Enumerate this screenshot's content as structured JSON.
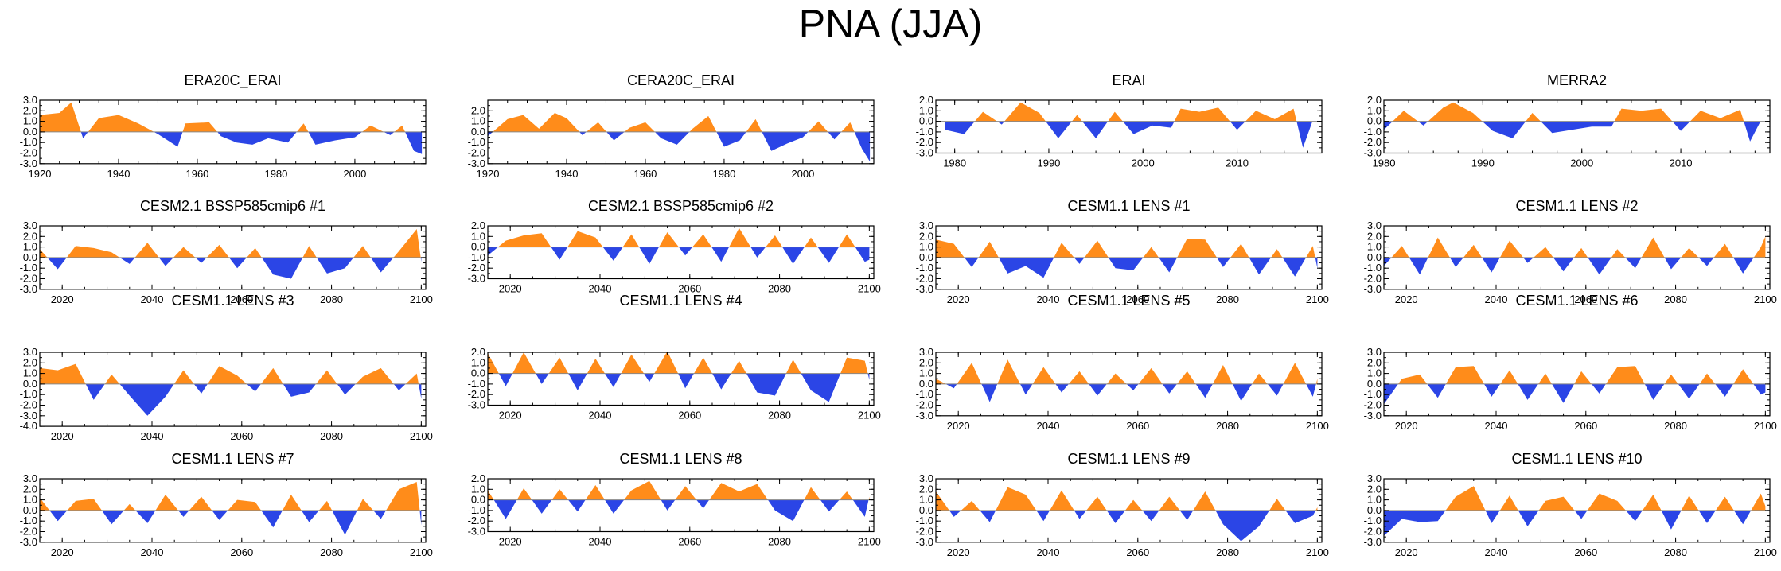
{
  "figure": {
    "title": "PNA (JJA)",
    "colors": {
      "positive": "#ff8c1a",
      "negative": "#2b45e6",
      "axis": "#000000",
      "zero": "#888888"
    }
  },
  "chart_data": [
    {
      "type": "area",
      "title": "ERA20C_ERAI",
      "xlim": [
        1920,
        2018
      ],
      "ylim": [
        -3,
        3
      ],
      "yticks": [
        "3.0",
        "2.0",
        "1.0",
        "0.0",
        "-1.0",
        "-2.0",
        "-3.0"
      ],
      "xticks": [
        1920,
        1940,
        1960,
        1980,
        2000
      ],
      "x": [
        1920,
        1925,
        1928,
        1931,
        1935,
        1940,
        1945,
        1950,
        1955,
        1957,
        1963,
        1966,
        1970,
        1974,
        1978,
        1983,
        1987,
        1990,
        1995,
        2000,
        2004,
        2009,
        2012,
        2015,
        2017
      ],
      "y": [
        1.6,
        1.8,
        2.8,
        -0.6,
        1.3,
        1.6,
        0.8,
        -0.2,
        -1.4,
        0.8,
        0.9,
        -0.4,
        -1.0,
        -1.2,
        -0.6,
        -1.0,
        0.8,
        -1.2,
        -0.8,
        -0.5,
        0.6,
        -0.3,
        0.6,
        -1.8,
        -2.1
      ]
    },
    {
      "type": "area",
      "title": "CERA20C_ERAI",
      "xlim": [
        1920,
        2018
      ],
      "ylim": [
        -3,
        3
      ],
      "yticks": [
        "2.0",
        "1.0",
        "0.0",
        "-1.0",
        "-2.0",
        "-3.0"
      ],
      "xticks": [
        1920,
        1940,
        1960,
        1980,
        2000
      ],
      "x": [
        1920,
        1925,
        1929,
        1933,
        1937,
        1940,
        1944,
        1948,
        1952,
        1956,
        1960,
        1964,
        1968,
        1972,
        1976,
        1980,
        1984,
        1988,
        1992,
        1996,
        2000,
        2004,
        2008,
        2012,
        2015,
        2017
      ],
      "y": [
        -0.4,
        1.2,
        1.6,
        0.3,
        1.8,
        1.3,
        -0.3,
        0.9,
        -0.8,
        0.4,
        0.9,
        -0.6,
        -1.2,
        0.3,
        1.5,
        -1.4,
        -0.8,
        1.2,
        -1.8,
        -1.1,
        -0.5,
        1.0,
        -0.7,
        0.9,
        -1.6,
        -2.8
      ]
    },
    {
      "type": "area",
      "title": "ERAI",
      "xlim": [
        1978,
        2019
      ],
      "ylim": [
        -3,
        2
      ],
      "yticks": [
        "2.0",
        "1.0",
        "0.0",
        "-1.0",
        "-2.0",
        "-3.0"
      ],
      "xticks": [
        1980,
        1990,
        2000,
        2010
      ],
      "x": [
        1979,
        1981,
        1983,
        1985,
        1987,
        1989,
        1991,
        1993,
        1995,
        1997,
        1999,
        2001,
        2003,
        2004,
        2006,
        2008,
        2010,
        2012,
        2014,
        2016,
        2017,
        2018
      ],
      "y": [
        -0.8,
        -1.2,
        0.9,
        -0.3,
        1.8,
        0.8,
        -1.6,
        0.6,
        -1.6,
        0.9,
        -1.2,
        -0.4,
        -0.6,
        1.2,
        0.9,
        1.3,
        -0.8,
        1.0,
        0.2,
        1.2,
        -2.5,
        0.0
      ]
    },
    {
      "type": "area",
      "title": "MERRA2",
      "xlim": [
        1980,
        2019
      ],
      "ylim": [
        -3,
        2
      ],
      "yticks": [
        "2.0",
        "1.0",
        "0.0",
        "-1.0",
        "-2.0",
        "-3.0"
      ],
      "xticks": [
        1980,
        1990,
        2000,
        2010
      ],
      "x": [
        1980,
        1982,
        1984,
        1986,
        1987,
        1989,
        1991,
        1993,
        1995,
        1997,
        1999,
        2001,
        2003,
        2004,
        2006,
        2008,
        2010,
        2012,
        2014,
        2016,
        2017,
        2018
      ],
      "y": [
        -0.8,
        1.0,
        -0.4,
        1.3,
        1.8,
        0.8,
        -0.9,
        -1.6,
        0.8,
        -1.1,
        -0.8,
        -0.5,
        -0.5,
        1.2,
        1.0,
        1.2,
        -0.9,
        1.0,
        0.3,
        1.1,
        -1.9,
        -0.1
      ]
    },
    {
      "type": "area",
      "title": "CESM2.1 BSSP585cmip6 #1",
      "xlim": [
        2015,
        2101
      ],
      "ylim": [
        -3,
        3
      ],
      "yticks": [
        "3.0",
        "2.0",
        "1.0",
        "0.0",
        "-1.0",
        "-2.0",
        "-3.0"
      ],
      "xticks": [
        2020,
        2040,
        2060,
        2080,
        2100
      ],
      "x": [
        2015,
        2019,
        2023,
        2027,
        2031,
        2035,
        2039,
        2043,
        2047,
        2051,
        2055,
        2059,
        2063,
        2067,
        2071,
        2075,
        2079,
        2083,
        2087,
        2091,
        2095,
        2099,
        2100
      ],
      "y": [
        0.8,
        -1.1,
        1.1,
        0.9,
        0.5,
        -0.6,
        1.4,
        -0.8,
        1.0,
        -0.5,
        1.2,
        -1.0,
        0.9,
        -1.6,
        -2.0,
        1.1,
        -1.5,
        -1.0,
        1.1,
        -1.4,
        0.6,
        2.7,
        -0.4
      ]
    },
    {
      "type": "area",
      "title": "CESM2.1 BSSP585cmip6 #2",
      "xlim": [
        2015,
        2101
      ],
      "ylim": [
        -3,
        2
      ],
      "yticks": [
        "2.0",
        "1.0",
        "0.0",
        "-1.0",
        "-2.0",
        "-3.0"
      ],
      "xticks": [
        2020,
        2040,
        2060,
        2080,
        2100
      ],
      "x": [
        2015,
        2019,
        2023,
        2027,
        2031,
        2035,
        2039,
        2043,
        2047,
        2051,
        2055,
        2059,
        2063,
        2067,
        2071,
        2075,
        2079,
        2083,
        2087,
        2091,
        2095,
        2099,
        2100
      ],
      "y": [
        -0.8,
        0.6,
        1.1,
        1.3,
        -1.2,
        1.5,
        0.9,
        -1.3,
        1.2,
        -1.6,
        1.4,
        -0.8,
        1.2,
        -1.4,
        1.8,
        -1.0,
        1.1,
        -1.6,
        0.9,
        -1.5,
        1.2,
        -1.4,
        -1.2
      ]
    },
    {
      "type": "area",
      "title": "CESM1.1 LENS #1",
      "xlim": [
        2015,
        2101
      ],
      "ylim": [
        -3,
        3
      ],
      "yticks": [
        "3.0",
        "2.0",
        "1.0",
        "0.0",
        "-1.0",
        "-2.0",
        "-3.0"
      ],
      "xticks": [
        2020,
        2040,
        2060,
        2080,
        2100
      ],
      "x": [
        2015,
        2019,
        2023,
        2027,
        2031,
        2035,
        2039,
        2043,
        2047,
        2051,
        2055,
        2059,
        2063,
        2067,
        2071,
        2075,
        2079,
        2083,
        2087,
        2091,
        2095,
        2099,
        2100
      ],
      "y": [
        1.7,
        1.3,
        -0.9,
        1.5,
        -1.5,
        -0.8,
        -1.9,
        1.4,
        -0.6,
        1.6,
        -1.0,
        -1.2,
        1.0,
        -1.4,
        1.8,
        1.7,
        -0.9,
        1.3,
        -1.6,
        0.8,
        -1.8,
        1.1,
        -1.0
      ]
    },
    {
      "type": "area",
      "title": "CESM1.1 LENS #2",
      "xlim": [
        2015,
        2101
      ],
      "ylim": [
        -3,
        3
      ],
      "yticks": [
        "3.0",
        "2.0",
        "1.0",
        "0.0",
        "-1.0",
        "-2.0",
        "-3.0"
      ],
      "xticks": [
        2020,
        2040,
        2060,
        2080,
        2100
      ],
      "x": [
        2015,
        2019,
        2023,
        2027,
        2031,
        2035,
        2039,
        2043,
        2047,
        2051,
        2055,
        2059,
        2063,
        2067,
        2071,
        2075,
        2079,
        2083,
        2087,
        2091,
        2095,
        2099,
        2100
      ],
      "y": [
        -0.8,
        1.1,
        -1.6,
        1.9,
        -0.9,
        1.2,
        -1.4,
        1.6,
        -0.5,
        1.0,
        -1.3,
        0.9,
        -1.6,
        0.8,
        -1.0,
        1.9,
        -1.1,
        0.9,
        -0.8,
        1.3,
        -1.5,
        1.0,
        2.0
      ]
    },
    {
      "type": "area",
      "title": "CESM1.1 LENS #3",
      "xlim": [
        2015,
        2101
      ],
      "ylim": [
        -4,
        3
      ],
      "yticks": [
        "3.0",
        "2.0",
        "1.0",
        "0.0",
        "-1.0",
        "-2.0",
        "-3.0",
        "-4.0"
      ],
      "xticks": [
        2020,
        2040,
        2060,
        2080,
        2100
      ],
      "x": [
        2015,
        2019,
        2023,
        2027,
        2031,
        2035,
        2039,
        2043,
        2047,
        2051,
        2055,
        2059,
        2063,
        2067,
        2071,
        2075,
        2079,
        2083,
        2087,
        2091,
        2095,
        2099,
        2100
      ],
      "y": [
        1.5,
        1.3,
        1.9,
        -1.5,
        0.9,
        -1.1,
        -3.0,
        -1.2,
        1.3,
        -0.9,
        1.7,
        0.8,
        -0.7,
        1.5,
        -1.2,
        -0.8,
        1.3,
        -1.0,
        0.7,
        1.5,
        -0.6,
        1.0,
        -1.4
      ]
    },
    {
      "type": "area",
      "title": "CESM1.1 LENS #4",
      "xlim": [
        2015,
        2101
      ],
      "ylim": [
        -3,
        2
      ],
      "yticks": [
        "2.0",
        "1.0",
        "0.0",
        "-1.0",
        "-2.0",
        "-3.0"
      ],
      "xticks": [
        2020,
        2040,
        2060,
        2080,
        2100
      ],
      "x": [
        2015,
        2019,
        2023,
        2027,
        2031,
        2035,
        2039,
        2043,
        2047,
        2051,
        2055,
        2059,
        2063,
        2067,
        2071,
        2075,
        2079,
        2083,
        2087,
        2091,
        2095,
        2099,
        2100
      ],
      "y": [
        1.9,
        -1.2,
        2.0,
        -1.0,
        1.5,
        -1.6,
        1.4,
        -1.3,
        1.8,
        -0.8,
        2.1,
        -1.4,
        1.5,
        -1.5,
        1.2,
        -1.8,
        -2.1,
        1.3,
        -1.6,
        -2.7,
        1.5,
        1.2,
        -0.6
      ]
    },
    {
      "type": "area",
      "title": "CESM1.1 LENS #5",
      "xlim": [
        2015,
        2101
      ],
      "ylim": [
        -3,
        3
      ],
      "yticks": [
        "3.0",
        "2.0",
        "1.0",
        "0.0",
        "-1.0",
        "-2.0",
        "-3.0"
      ],
      "xticks": [
        2020,
        2040,
        2060,
        2080,
        2100
      ],
      "x": [
        2015,
        2019,
        2023,
        2027,
        2031,
        2035,
        2039,
        2043,
        2047,
        2051,
        2055,
        2059,
        2063,
        2067,
        2071,
        2075,
        2079,
        2083,
        2087,
        2091,
        2095,
        2099,
        2100
      ],
      "y": [
        0.5,
        -0.4,
        2.0,
        -1.7,
        2.3,
        -1.0,
        1.6,
        -0.8,
        1.2,
        -1.1,
        1.0,
        -0.6,
        1.5,
        -0.9,
        1.2,
        -1.3,
        1.8,
        -1.6,
        1.0,
        -1.1,
        2.0,
        -1.2,
        0.5
      ]
    },
    {
      "type": "area",
      "title": "CESM1.1 LENS #6",
      "xlim": [
        2015,
        2101
      ],
      "ylim": [
        -3,
        3
      ],
      "yticks": [
        "3.0",
        "2.0",
        "1.0",
        "0.0",
        "-1.0",
        "-2.0",
        "-3.0"
      ],
      "xticks": [
        2020,
        2040,
        2060,
        2080,
        2100
      ],
      "x": [
        2015,
        2019,
        2023,
        2027,
        2031,
        2035,
        2039,
        2043,
        2047,
        2051,
        2055,
        2059,
        2063,
        2067,
        2071,
        2075,
        2079,
        2083,
        2087,
        2091,
        2095,
        2099,
        2100
      ],
      "y": [
        -1.9,
        0.5,
        0.9,
        -1.3,
        1.6,
        1.7,
        -1.2,
        1.3,
        -1.5,
        1.0,
        -1.8,
        1.2,
        -0.9,
        1.6,
        1.7,
        -1.5,
        0.9,
        -1.4,
        1.0,
        -1.2,
        1.4,
        -1.0,
        -0.8
      ]
    },
    {
      "type": "area",
      "title": "CESM1.1 LENS #7",
      "xlim": [
        2015,
        2101
      ],
      "ylim": [
        -3,
        3
      ],
      "yticks": [
        "3.0",
        "2.0",
        "1.0",
        "0.0",
        "-1.0",
        "-2.0",
        "-3.0"
      ],
      "xticks": [
        2020,
        2040,
        2060,
        2080,
        2100
      ],
      "x": [
        2015,
        2019,
        2023,
        2027,
        2031,
        2035,
        2039,
        2043,
        2047,
        2051,
        2055,
        2059,
        2063,
        2067,
        2071,
        2075,
        2079,
        2083,
        2087,
        2091,
        2095,
        2099,
        2100
      ],
      "y": [
        1.2,
        -1.0,
        0.9,
        1.1,
        -1.3,
        0.6,
        -1.2,
        1.5,
        -0.6,
        1.3,
        -0.9,
        1.0,
        0.8,
        -1.6,
        1.5,
        -1.1,
        0.9,
        -2.3,
        1.1,
        -0.8,
        2.0,
        2.7,
        -1.4
      ]
    },
    {
      "type": "area",
      "title": "CESM1.1 LENS #8",
      "xlim": [
        2015,
        2101
      ],
      "ylim": [
        -3,
        2
      ],
      "yticks": [
        "2.0",
        "1.0",
        "0.0",
        "-1.0",
        "-2.0",
        "-3.0"
      ],
      "xticks": [
        2020,
        2040,
        2060,
        2080,
        2100
      ],
      "x": [
        2015,
        2019,
        2023,
        2027,
        2031,
        2035,
        2039,
        2043,
        2047,
        2051,
        2055,
        2059,
        2063,
        2067,
        2071,
        2075,
        2079,
        2083,
        2087,
        2091,
        2095,
        2099,
        2100
      ],
      "y": [
        0.9,
        -1.8,
        1.1,
        -1.3,
        1.0,
        -1.1,
        1.4,
        -1.3,
        0.9,
        1.8,
        -1.0,
        1.3,
        -0.8,
        1.6,
        0.8,
        1.5,
        -1.0,
        -2.0,
        1.2,
        -1.1,
        0.8,
        -1.6,
        0.3
      ]
    },
    {
      "type": "area",
      "title": "CESM1.1 LENS #9",
      "xlim": [
        2015,
        2101
      ],
      "ylim": [
        -3,
        3
      ],
      "yticks": [
        "3.0",
        "2.0",
        "1.0",
        "0.0",
        "-1.0",
        "-2.0",
        "-3.0"
      ],
      "xticks": [
        2020,
        2040,
        2060,
        2080,
        2100
      ],
      "x": [
        2015,
        2019,
        2023,
        2027,
        2031,
        2035,
        2039,
        2043,
        2047,
        2051,
        2055,
        2059,
        2063,
        2067,
        2071,
        2075,
        2079,
        2083,
        2087,
        2091,
        2095,
        2099,
        2100
      ],
      "y": [
        1.8,
        -0.6,
        0.9,
        -1.1,
        2.2,
        1.5,
        -1.0,
        1.9,
        -0.8,
        1.3,
        -1.2,
        1.0,
        -1.0,
        1.3,
        -0.9,
        1.8,
        -1.3,
        -2.9,
        -1.5,
        1.1,
        -1.2,
        -0.5,
        0.3
      ]
    },
    {
      "type": "area",
      "title": "CESM1.1 LENS #10",
      "xlim": [
        2015,
        2101
      ],
      "ylim": [
        -3,
        3
      ],
      "yticks": [
        "3.0",
        "2.0",
        "1.0",
        "0.0",
        "-1.0",
        "-2.0",
        "-3.0"
      ],
      "xticks": [
        2020,
        2040,
        2060,
        2080,
        2100
      ],
      "x": [
        2015,
        2019,
        2023,
        2027,
        2031,
        2035,
        2039,
        2043,
        2047,
        2051,
        2055,
        2059,
        2063,
        2067,
        2071,
        2075,
        2079,
        2083,
        2087,
        2091,
        2095,
        2099,
        2100
      ],
      "y": [
        -2.4,
        -0.8,
        -1.1,
        -1.0,
        1.3,
        2.3,
        -1.2,
        1.4,
        -1.5,
        0.9,
        1.3,
        -0.8,
        1.6,
        0.9,
        -1.0,
        1.5,
        -1.8,
        1.4,
        -1.2,
        1.3,
        -1.3,
        1.6,
        0.4
      ]
    }
  ]
}
